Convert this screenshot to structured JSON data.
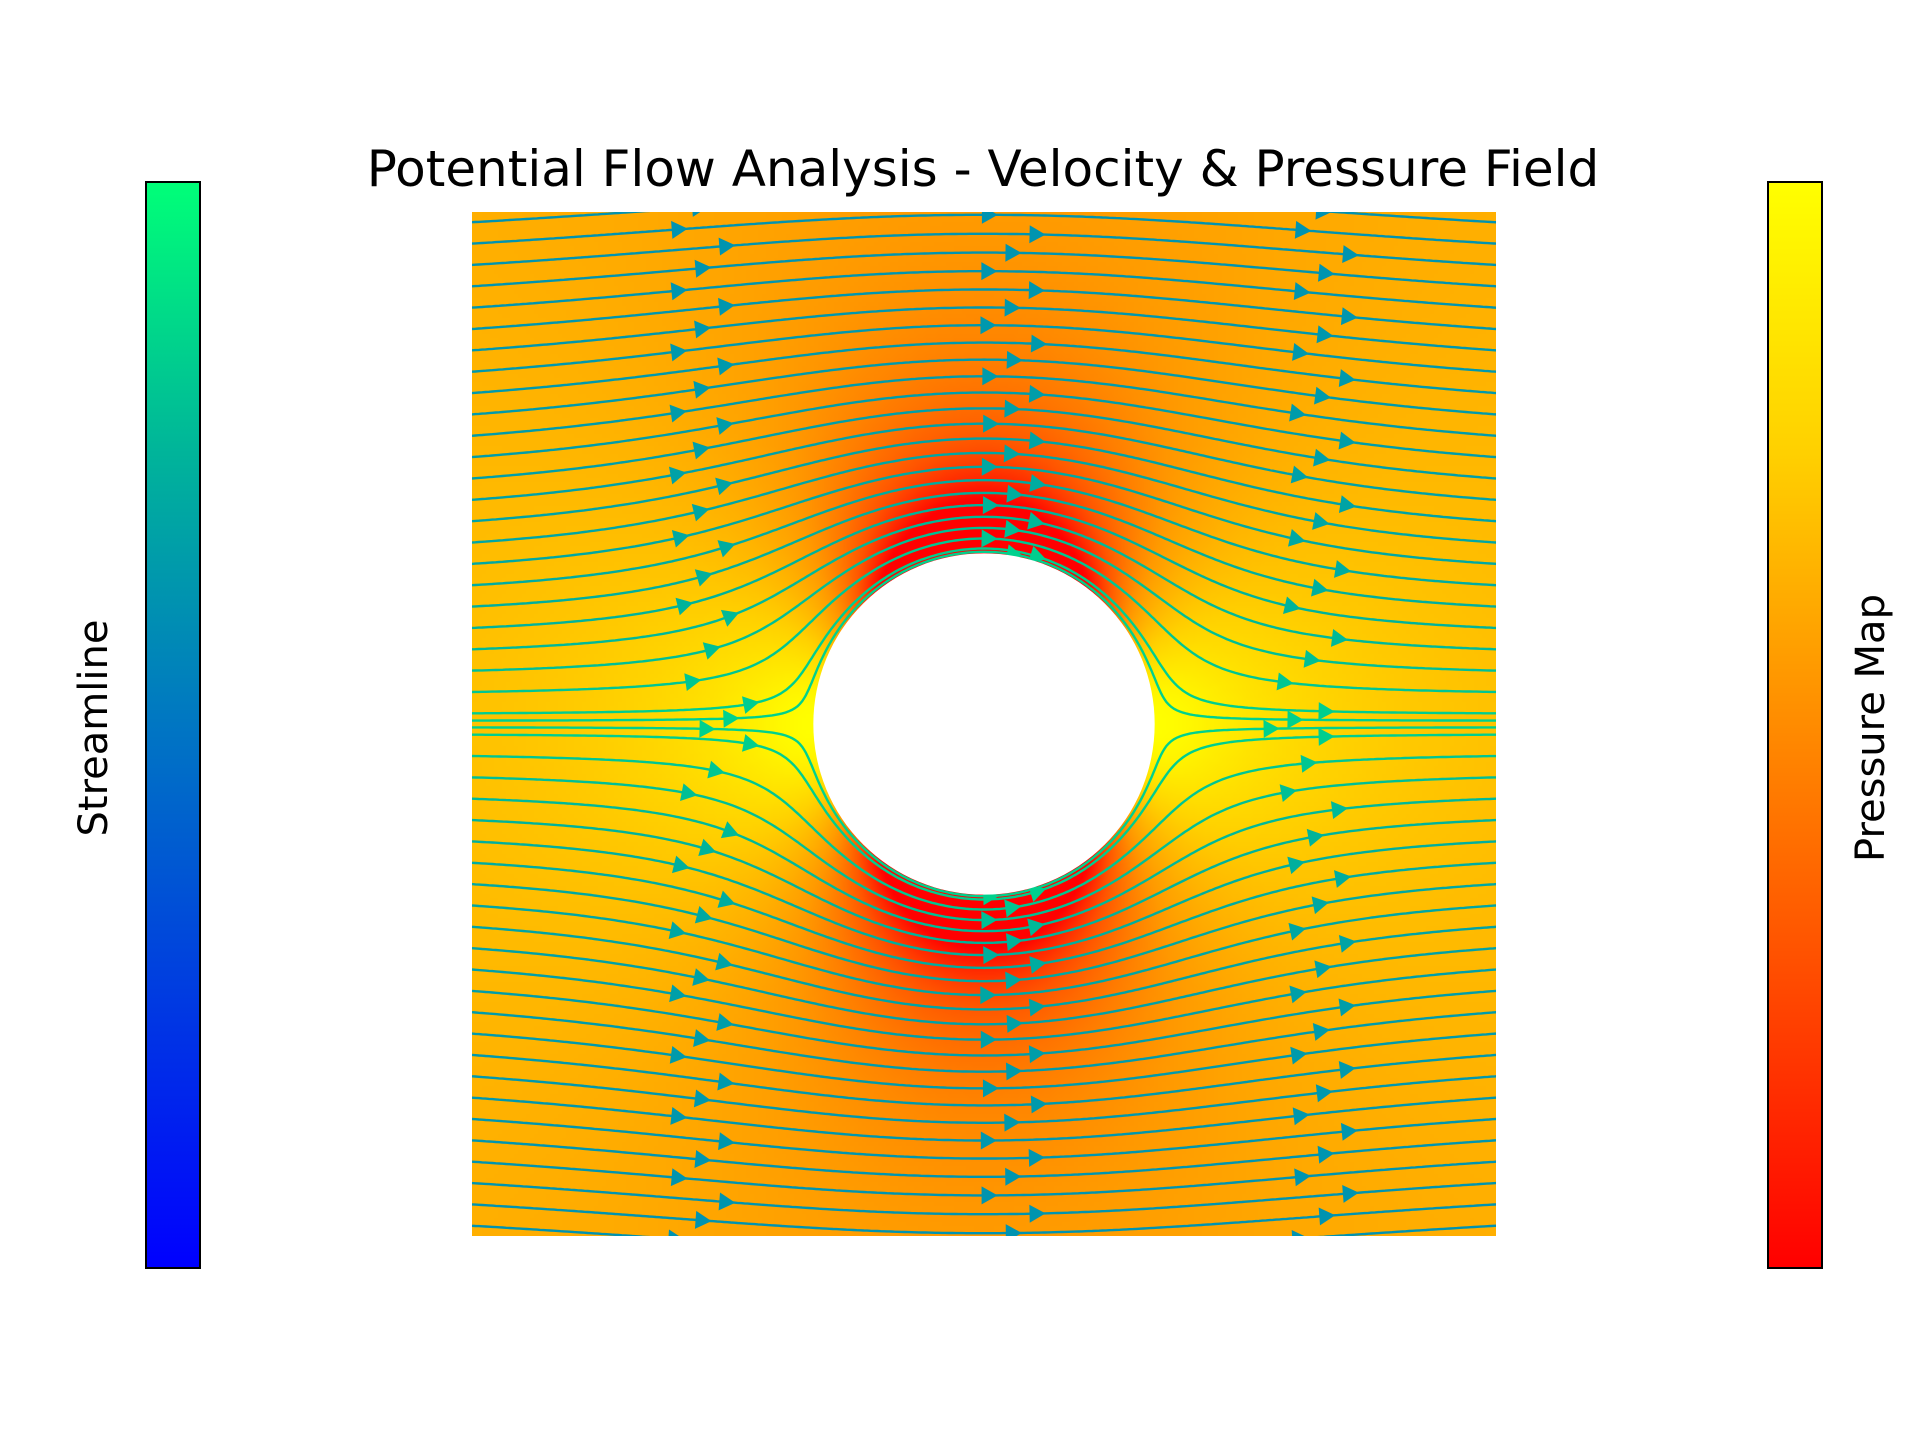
{
  "chart_data": {
    "type": "streamplot",
    "title": "Potential Flow Analysis - Velocity & Pressure Field",
    "description_free": true,
    "xlim": [
      -3,
      3
    ],
    "ylim": [
      -3,
      3
    ],
    "cylinder_radius": 1.0,
    "freestream_velocity": 1.0,
    "axes_visible": false,
    "grid": false,
    "background_field": "pressure",
    "streamline_color_field": "speed",
    "colorbars": [
      {
        "label": "Streamline",
        "position": "left",
        "colors": [
          "#0000ff",
          "#0076c3",
          "#00b49a",
          "#00ff78"
        ]
      },
      {
        "label": "Pressure Map",
        "position": "right",
        "colors": [
          "#ff0000",
          "#ff5500",
          "#ff9900",
          "#ffd000",
          "#ffff00"
        ]
      }
    ]
  }
}
